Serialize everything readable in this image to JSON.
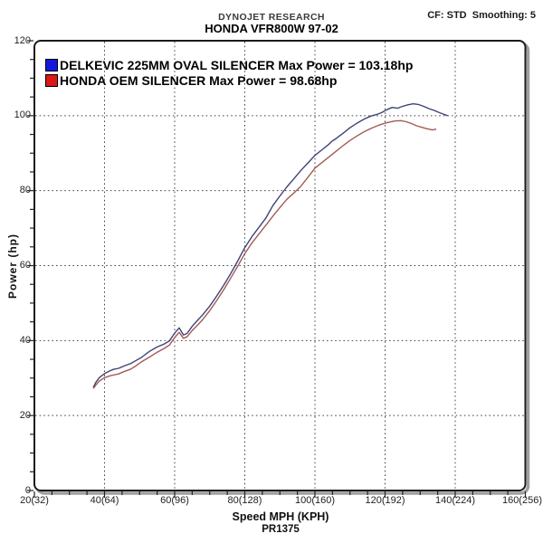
{
  "header": {
    "brand": "DYNOJET RESEARCH",
    "model": "HONDA VFR800W 97-02",
    "settings": "CF: STD  Smoothing: 5"
  },
  "chart_data": {
    "type": "line",
    "title": "HONDA VFR800W 97-02 dyno power comparison",
    "xlabel": "Speed MPH (KPH)",
    "ylabel": "Power (hp)",
    "footer": "PR1375",
    "xlim": [
      20,
      160
    ],
    "ylim": [
      0,
      120
    ],
    "x_tick_values": [
      20,
      40,
      60,
      80,
      100,
      120,
      140,
      160
    ],
    "x_tick_labels": [
      "20(32)",
      "40(64)",
      "60(96)",
      "80(128)",
      "100(160)",
      "120(192)",
      "140(224)",
      "160(256)"
    ],
    "y_tick_values": [
      0,
      20,
      40,
      60,
      80,
      100,
      120
    ],
    "minor_tick_step": 5,
    "grid": "dotted-major",
    "legend_position": "top-left-inside",
    "frame": {
      "border_color": "#1a1a1a",
      "shadow_color": "#9f9f9f",
      "grid_color": "#444444"
    },
    "series": [
      {
        "name": "DELKEVIC 225MM OVAL SILENCER",
        "legend_label": "DELKEVIC 225MM OVAL SILENCER Max Power = 103.18hp",
        "max_power_hp": 103.18,
        "swatch_color": "#1616dd",
        "line_color": "#3d4377",
        "points": [
          [
            36.8,
            27.5
          ],
          [
            37.5,
            28.8
          ],
          [
            38.5,
            30.1
          ],
          [
            40,
            31.2
          ],
          [
            41.5,
            31.9
          ],
          [
            42.5,
            32.3
          ],
          [
            44,
            32.6
          ],
          [
            45.5,
            33.2
          ],
          [
            47.5,
            33.9
          ],
          [
            49,
            34.7
          ],
          [
            50.5,
            35.5
          ],
          [
            52.8,
            37.1
          ],
          [
            55,
            38.3
          ],
          [
            57,
            39.1
          ],
          [
            58.5,
            39.9
          ],
          [
            60,
            42.0
          ],
          [
            61.3,
            43.4
          ],
          [
            62.5,
            41.5
          ],
          [
            63.5,
            41.9
          ],
          [
            65,
            43.8
          ],
          [
            66.5,
            45.4
          ],
          [
            68,
            46.9
          ],
          [
            70,
            49.2
          ],
          [
            72,
            51.9
          ],
          [
            74,
            54.8
          ],
          [
            76,
            57.9
          ],
          [
            78,
            61.3
          ],
          [
            80,
            64.8
          ],
          [
            82,
            67.7
          ],
          [
            84,
            70.2
          ],
          [
            86,
            72.7
          ],
          [
            88,
            76.0
          ],
          [
            90,
            78.6
          ],
          [
            92,
            81.0
          ],
          [
            94,
            83.2
          ],
          [
            96,
            85.4
          ],
          [
            98,
            87.4
          ],
          [
            100,
            89.4
          ],
          [
            102,
            90.9
          ],
          [
            104,
            92.4
          ],
          [
            105,
            93.3
          ],
          [
            106,
            93.9
          ],
          [
            108,
            95.3
          ],
          [
            110,
            96.8
          ],
          [
            112,
            98.0
          ],
          [
            114,
            99.1
          ],
          [
            116,
            99.9
          ],
          [
            117.5,
            100.3
          ],
          [
            119,
            100.8
          ],
          [
            120.5,
            101.6
          ],
          [
            122,
            102.2
          ],
          [
            123.5,
            102.0
          ],
          [
            125,
            102.5
          ],
          [
            126.5,
            102.9
          ],
          [
            128,
            103.18
          ],
          [
            129.5,
            103.0
          ],
          [
            131,
            102.5
          ],
          [
            132.5,
            101.9
          ],
          [
            134,
            101.4
          ],
          [
            135.5,
            100.8
          ],
          [
            137,
            100.3
          ],
          [
            137.8,
            100.0
          ]
        ]
      },
      {
        "name": "HONDA OEM SILENCER",
        "legend_label": "HONDA OEM SILENCER Max Power = 98.68hp",
        "max_power_hp": 98.68,
        "swatch_color": "#dd1616",
        "line_color": "#a35b55",
        "points": [
          [
            36.8,
            27.2
          ],
          [
            37.5,
            28.1
          ],
          [
            38.5,
            29.2
          ],
          [
            40,
            30.1
          ],
          [
            41.5,
            30.6
          ],
          [
            42.5,
            30.8
          ],
          [
            44,
            31.1
          ],
          [
            45.5,
            31.7
          ],
          [
            47.5,
            32.4
          ],
          [
            49,
            33.3
          ],
          [
            50.5,
            34.3
          ],
          [
            52.8,
            35.6
          ],
          [
            55,
            36.9
          ],
          [
            57,
            37.9
          ],
          [
            58.5,
            38.8
          ],
          [
            60,
            40.8
          ],
          [
            61.3,
            42.2
          ],
          [
            62.5,
            40.6
          ],
          [
            63.5,
            41.0
          ],
          [
            65,
            42.7
          ],
          [
            66.5,
            44.1
          ],
          [
            68,
            45.6
          ],
          [
            70,
            48.0
          ],
          [
            72,
            50.7
          ],
          [
            74,
            53.6
          ],
          [
            76,
            56.7
          ],
          [
            78,
            59.9
          ],
          [
            80,
            63.2
          ],
          [
            82,
            66.0
          ],
          [
            84,
            68.4
          ],
          [
            86,
            70.8
          ],
          [
            88,
            73.2
          ],
          [
            90,
            75.5
          ],
          [
            92,
            77.7
          ],
          [
            94,
            79.4
          ],
          [
            96,
            81.2
          ],
          [
            98,
            83.6
          ],
          [
            100,
            86.0
          ],
          [
            102,
            87.5
          ],
          [
            104,
            89.0
          ],
          [
            106,
            90.5
          ],
          [
            108,
            92.0
          ],
          [
            110,
            93.4
          ],
          [
            112,
            94.6
          ],
          [
            114,
            95.7
          ],
          [
            116,
            96.6
          ],
          [
            118,
            97.4
          ],
          [
            120,
            98.0
          ],
          [
            121.5,
            98.35
          ],
          [
            123,
            98.6
          ],
          [
            124.5,
            98.68
          ],
          [
            126,
            98.4
          ],
          [
            127.5,
            97.9
          ],
          [
            129,
            97.3
          ],
          [
            130.5,
            96.9
          ],
          [
            132,
            96.5
          ],
          [
            133.5,
            96.2
          ],
          [
            134.6,
            96.4
          ]
        ]
      }
    ]
  }
}
